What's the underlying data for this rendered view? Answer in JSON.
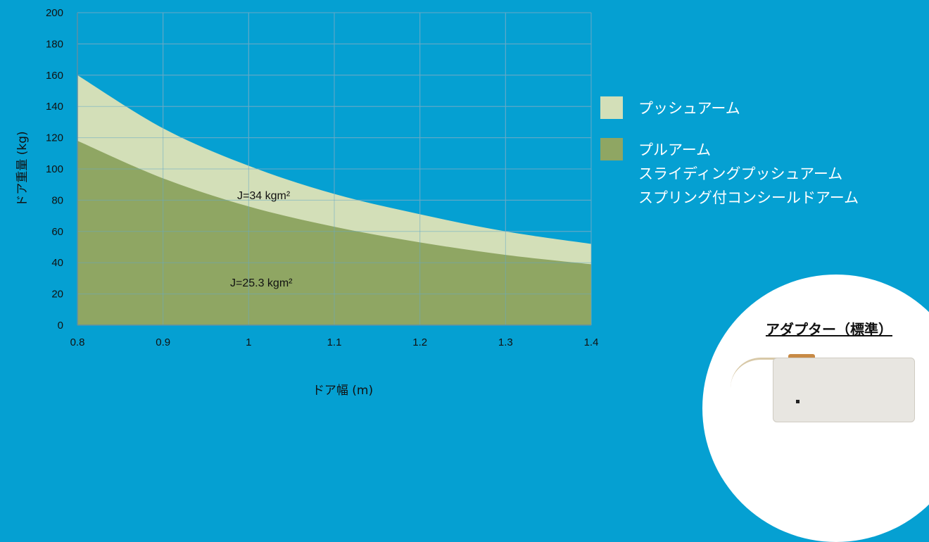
{
  "chart_data": {
    "type": "area",
    "xlabel": "ドア幅 (m)",
    "ylabel": "ドア重量 (kg)",
    "xlim": [
      0.8,
      1.4
    ],
    "ylim": [
      0,
      200
    ],
    "x_ticks": [
      "0.8",
      "0.9",
      "1",
      "1.1",
      "1.2",
      "1.3",
      "1.4"
    ],
    "y_ticks": [
      "0",
      "20",
      "40",
      "60",
      "80",
      "100",
      "120",
      "140",
      "160",
      "180",
      "200"
    ],
    "grid": true,
    "x": [
      0.8,
      0.9,
      1.0,
      1.1,
      1.2,
      1.3,
      1.4
    ],
    "series": [
      {
        "name": "プッシュアーム",
        "values": [
          160,
          126,
          102,
          84,
          71,
          60,
          52
        ],
        "color": "#d3dfb8",
        "annotation": "J=34 kgm²"
      },
      {
        "name": "プルアーム",
        "values": [
          118,
          94,
          76,
          63,
          53,
          45,
          39
        ],
        "color": "#8fa663",
        "annotation": "J=25.3 kgm²"
      }
    ],
    "legend_placement": "right"
  },
  "legend": [
    {
      "color": "#d3dfb8",
      "lines": [
        "プッシュアーム"
      ]
    },
    {
      "color": "#8fa663",
      "lines": [
        "プルアーム",
        "スライディングプッシュアーム",
        "スプリング付コンシールドアーム"
      ]
    }
  ],
  "inset": {
    "title": "アダプター（標準）",
    "icon": "adapter-photo"
  },
  "colors": {
    "background": "#05a0d2",
    "grid": "#67a9c6"
  }
}
